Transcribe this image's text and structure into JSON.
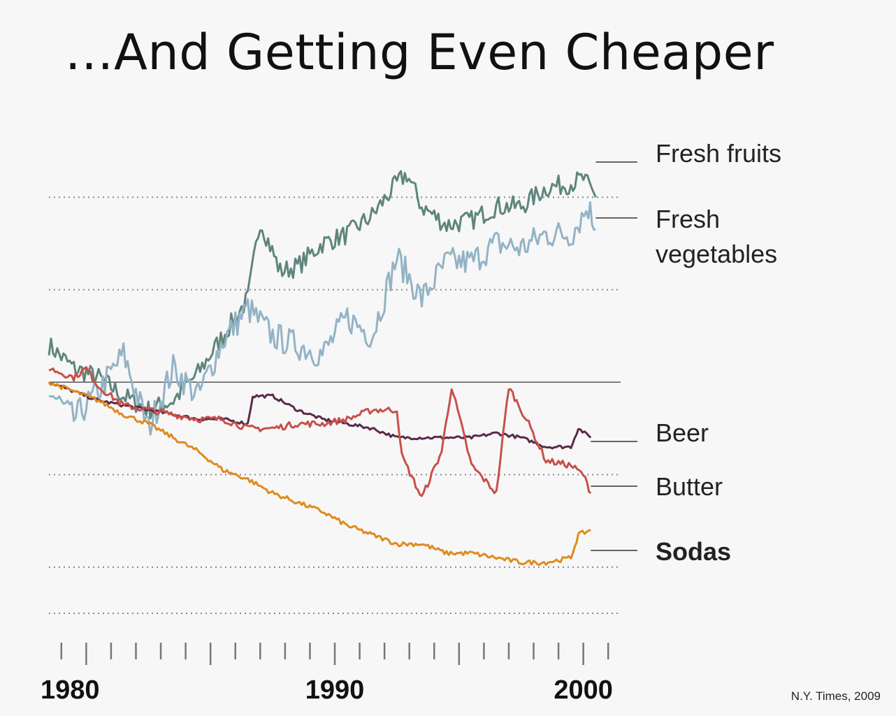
{
  "title": "…And Getting Even Cheaper",
  "source": "N.Y. Times, 2009",
  "chart_data": {
    "type": "line",
    "x_ticks": [
      "1980",
      "1990",
      "2000"
    ],
    "xlim": [
      1978.5,
      2001.5
    ],
    "ylim": [
      -50,
      60
    ],
    "grid": true,
    "baseline": 0,
    "gridlines": [
      40,
      20,
      -20,
      -40
    ],
    "series": [
      {
        "name": "Fresh fruits",
        "color": "#5f857c",
        "values": [
          [
            1978.5,
            8
          ],
          [
            1979.5,
            3
          ],
          [
            1980.5,
            1
          ],
          [
            1981.5,
            -3
          ],
          [
            1982.5,
            -6
          ],
          [
            1983.5,
            -4
          ],
          [
            1984.5,
            2
          ],
          [
            1985.5,
            10
          ],
          [
            1986.5,
            18
          ],
          [
            1987,
            35
          ],
          [
            1987.8,
            24
          ],
          [
            1988.5,
            25
          ],
          [
            1989.5,
            30
          ],
          [
            1990.5,
            32
          ],
          [
            1991.5,
            36
          ],
          [
            1992.5,
            43
          ],
          [
            1992.9,
            45
          ],
          [
            1993.5,
            38
          ],
          [
            1994.5,
            34
          ],
          [
            1995.5,
            35
          ],
          [
            1996.5,
            38
          ],
          [
            1997.5,
            38
          ],
          [
            1998.5,
            42
          ],
          [
            1999.5,
            43
          ],
          [
            2000,
            44
          ],
          [
            2000.5,
            40
          ]
        ]
      },
      {
        "name": "Fresh vegetables",
        "color": "#93b3c6",
        "values": [
          [
            1978.5,
            -2
          ],
          [
            1979.5,
            -8
          ],
          [
            1980.5,
            -2
          ],
          [
            1981.5,
            6
          ],
          [
            1982.5,
            -10
          ],
          [
            1983.5,
            3
          ],
          [
            1984.5,
            -3
          ],
          [
            1985.5,
            9
          ],
          [
            1986.5,
            16
          ],
          [
            1987.5,
            10
          ],
          [
            1988.5,
            8
          ],
          [
            1989.5,
            6
          ],
          [
            1990.5,
            14
          ],
          [
            1991.5,
            10
          ],
          [
            1992.5,
            27
          ],
          [
            1993.5,
            18
          ],
          [
            1994.5,
            26
          ],
          [
            1995.5,
            26
          ],
          [
            1996.5,
            30
          ],
          [
            1997.5,
            29
          ],
          [
            1998.5,
            32
          ],
          [
            1999.5,
            32
          ],
          [
            2000.2,
            38
          ],
          [
            2000.5,
            33
          ]
        ]
      },
      {
        "name": "Beer",
        "color": "#5a2a4a",
        "values": [
          [
            1978.5,
            0
          ],
          [
            1979.5,
            -2
          ],
          [
            1980.5,
            -4
          ],
          [
            1981.5,
            -5
          ],
          [
            1982.5,
            -6
          ],
          [
            1983.5,
            -7
          ],
          [
            1984.5,
            -8
          ],
          [
            1985.5,
            -8
          ],
          [
            1986.5,
            -9
          ],
          [
            1986.7,
            -3
          ],
          [
            1987.5,
            -3
          ],
          [
            1988.5,
            -6
          ],
          [
            1989.5,
            -8
          ],
          [
            1990.5,
            -9
          ],
          [
            1991.5,
            -10
          ],
          [
            1992.5,
            -12
          ],
          [
            1993.5,
            -12
          ],
          [
            1994.5,
            -12
          ],
          [
            1995.5,
            -12
          ],
          [
            1996.5,
            -11
          ],
          [
            1997.5,
            -12
          ],
          [
            1998.5,
            -14
          ],
          [
            1999.5,
            -14
          ],
          [
            1999.8,
            -10
          ],
          [
            2000.3,
            -12
          ]
        ]
      },
      {
        "name": "Butter",
        "color": "#c8504a",
        "values": [
          [
            1978.5,
            3
          ],
          [
            1979.5,
            1
          ],
          [
            1980,
            3
          ],
          [
            1980.5,
            -1
          ],
          [
            1981.5,
            -5
          ],
          [
            1982.5,
            -6
          ],
          [
            1983.5,
            -7
          ],
          [
            1984.5,
            -8
          ],
          [
            1985.5,
            -8
          ],
          [
            1986.5,
            -10
          ],
          [
            1987.5,
            -10
          ],
          [
            1988.5,
            -9
          ],
          [
            1989.5,
            -9
          ],
          [
            1990.5,
            -8
          ],
          [
            1991.5,
            -6
          ],
          [
            1992.5,
            -6
          ],
          [
            1992.7,
            -16
          ],
          [
            1993.5,
            -25
          ],
          [
            1994.3,
            -15
          ],
          [
            1994.7,
            -1
          ],
          [
            1995.5,
            -18
          ],
          [
            1996.5,
            -24
          ],
          [
            1997,
            -1
          ],
          [
            1997.8,
            -9
          ],
          [
            1998.5,
            -17
          ],
          [
            1999.5,
            -18
          ],
          [
            2000,
            -20
          ],
          [
            2000.3,
            -24
          ]
        ]
      },
      {
        "name": "Sodas",
        "color": "#e08a1e",
        "values": [
          [
            1978.5,
            0
          ],
          [
            1979.5,
            -2
          ],
          [
            1980.5,
            -4
          ],
          [
            1981.5,
            -7
          ],
          [
            1982.5,
            -9
          ],
          [
            1983.5,
            -12
          ],
          [
            1984.5,
            -15
          ],
          [
            1985.5,
            -19
          ],
          [
            1986.5,
            -21
          ],
          [
            1987.5,
            -24
          ],
          [
            1988.5,
            -26
          ],
          [
            1989.5,
            -28
          ],
          [
            1990.5,
            -31
          ],
          [
            1991.5,
            -33
          ],
          [
            1992.5,
            -35
          ],
          [
            1993.5,
            -35
          ],
          [
            1994.5,
            -37
          ],
          [
            1995.5,
            -37
          ],
          [
            1996.5,
            -38
          ],
          [
            1997.5,
            -39
          ],
          [
            1998.5,
            -39
          ],
          [
            1999.5,
            -38
          ],
          [
            1999.8,
            -33
          ],
          [
            2000.3,
            -32
          ]
        ]
      }
    ]
  }
}
